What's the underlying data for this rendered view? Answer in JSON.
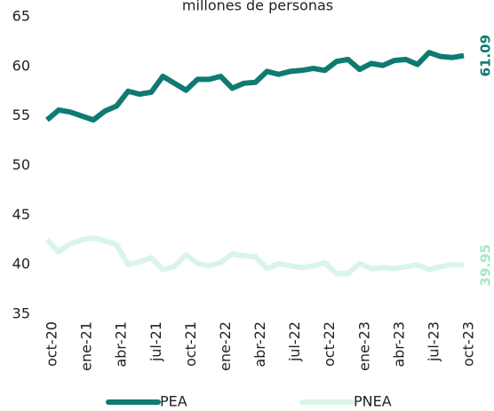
{
  "chart_data": {
    "type": "line",
    "title": "millones de personas",
    "categories": [
      "oct-20",
      null,
      null,
      "ene-21",
      null,
      null,
      "abr-21",
      null,
      null,
      "jul-21",
      null,
      null,
      "oct-21",
      null,
      null,
      "ene-22",
      null,
      null,
      "abr-22",
      null,
      null,
      "jul-22",
      null,
      null,
      "oct-22",
      null,
      null,
      "ene-23",
      null,
      null,
      "abr-23",
      null,
      null,
      "jul-23",
      null,
      null,
      "oct-23"
    ],
    "series": [
      {
        "name": "PEA",
        "color": "#0f7a72",
        "label_color": "#0f7a72",
        "values": [
          54.6,
          55.6,
          55.4,
          55.0,
          54.6,
          55.5,
          56.0,
          57.5,
          57.2,
          57.4,
          59.0,
          58.3,
          57.6,
          58.7,
          58.7,
          59.0,
          57.8,
          58.3,
          58.4,
          59.5,
          59.2,
          59.5,
          59.6,
          59.8,
          59.6,
          60.5,
          60.7,
          59.7,
          60.3,
          60.1,
          60.6,
          60.7,
          60.2,
          61.4,
          61.0,
          60.9,
          61.09
        ]
      },
      {
        "name": "PNEA",
        "color": "#d9f5e8",
        "label_color": "#a8e6c8",
        "values": [
          42.5,
          41.3,
          42.1,
          42.5,
          42.7,
          42.4,
          42.0,
          40.0,
          40.3,
          40.7,
          39.5,
          39.8,
          41.0,
          40.1,
          39.9,
          40.2,
          41.1,
          40.9,
          40.8,
          39.6,
          40.1,
          39.9,
          39.7,
          39.9,
          40.2,
          39.1,
          39.1,
          40.1,
          39.6,
          39.7,
          39.6,
          39.8,
          40.0,
          39.5,
          39.8,
          40.0,
          39.95
        ]
      }
    ],
    "ylim": [
      35,
      65
    ],
    "yticks": [
      35,
      40,
      45,
      50,
      55,
      60,
      65
    ],
    "grid": false,
    "legend": "bottom"
  }
}
